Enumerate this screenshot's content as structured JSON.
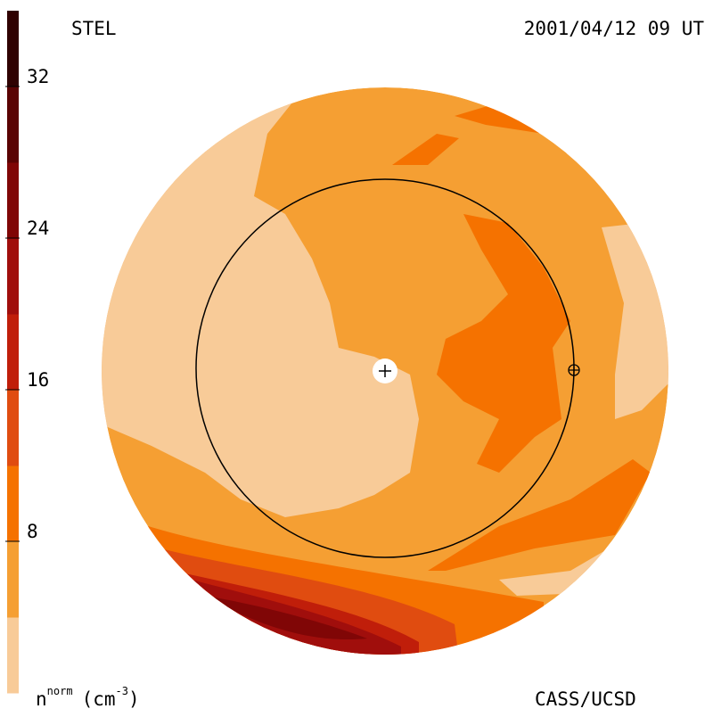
{
  "chart_data": {
    "type": "colormap",
    "title": "STEL",
    "date": "2001/04/12 09 UT",
    "credit": "CASS/UCSD",
    "unit_label": {
      "base": "n",
      "sup": "norm",
      "unit": "(cm",
      "unit_sup": "-3",
      "close": ")"
    },
    "levels": [
      0,
      4,
      8,
      12,
      16,
      20,
      24,
      28,
      32,
      36
    ],
    "colors": [
      "#f8cb98",
      "#f59f33",
      "#f57200",
      "#e04c10",
      "#c01e0a",
      "#a00e0c",
      "#800606",
      "#5a0303",
      "#300101"
    ],
    "ylim": [
      0,
      36
    ],
    "yticks": [
      8,
      16,
      24,
      32
    ]
  }
}
